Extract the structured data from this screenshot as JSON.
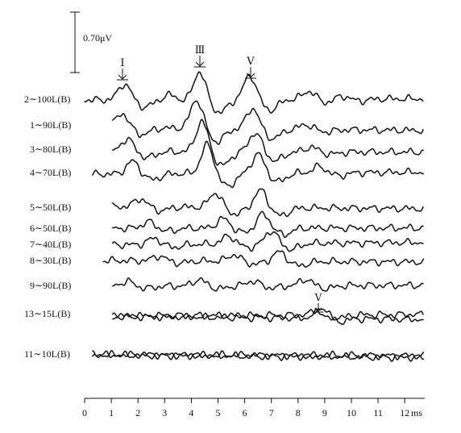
{
  "chart_data": {
    "type": "line",
    "xlabel": "ms",
    "xlim": [
      0,
      12.8
    ],
    "x_ticks": [
      "0",
      "1",
      "2",
      "3",
      "4",
      "5",
      "6",
      "7",
      "8",
      "9",
      "10",
      "11",
      "12"
    ],
    "scale_bar_label": "0.70μV",
    "peak_labels": [
      "Ⅰ",
      "Ⅲ",
      "Ⅴ"
    ],
    "peak_latencies_ms": [
      1.5,
      4.3,
      6.2
    ],
    "late_peak_label": "Ⅴ",
    "late_peak_latency_ms": 8.8,
    "series": [
      {
        "name": "2∼100L(B)",
        "peaks": [
          [
            1.5,
            1.0
          ],
          [
            3.2,
            0.3
          ],
          [
            4.3,
            1.8
          ],
          [
            6.2,
            1.5
          ],
          [
            8.4,
            0.5
          ],
          [
            9.6,
            0.25
          ]
        ]
      },
      {
        "name": "1∼90L(B)",
        "peaks": [
          [
            1.4,
            0.9
          ],
          [
            4.2,
            1.8
          ],
          [
            6.3,
            1.3
          ],
          [
            8.3,
            0.3
          ]
        ]
      },
      {
        "name": "3∼80L(B)",
        "peaks": [
          [
            1.6,
            0.8
          ],
          [
            4.4,
            1.9
          ],
          [
            6.4,
            1.2
          ],
          [
            8.5,
            0.3
          ]
        ]
      },
      {
        "name": "4∼70L(B)",
        "peaks": [
          [
            1.8,
            0.8
          ],
          [
            4.6,
            1.8
          ],
          [
            6.5,
            1.2
          ],
          [
            8.8,
            0.4
          ]
        ]
      },
      {
        "name": "5∼50L(B)",
        "peaks": [
          [
            2.1,
            0.5
          ],
          [
            4.9,
            0.9
          ],
          [
            6.6,
            1.1
          ]
        ]
      },
      {
        "name": "6∼50L(B)",
        "peaks": [
          [
            2.4,
            0.4
          ],
          [
            5.2,
            0.6
          ],
          [
            6.7,
            0.9
          ]
        ]
      },
      {
        "name": "7∼40L(B)",
        "peaks": [
          [
            2.6,
            0.4
          ],
          [
            5.4,
            0.5
          ],
          [
            7.0,
            0.8
          ]
        ]
      },
      {
        "name": "8∼30L(B)",
        "peaks": [
          [
            2.8,
            0.3
          ],
          [
            5.6,
            0.4
          ],
          [
            7.3,
            0.6
          ]
        ]
      },
      {
        "name": "9∼90L(B)",
        "peaks": [
          [
            1.6,
            0.3
          ],
          [
            4.3,
            0.4
          ],
          [
            6.3,
            0.3
          ],
          [
            8.3,
            0.4
          ]
        ]
      },
      {
        "name": "13∼15L(B)",
        "peaks": [
          [
            8.8,
            0.4
          ]
        ]
      },
      {
        "name": "11∼10L(B)",
        "peaks": []
      }
    ]
  }
}
